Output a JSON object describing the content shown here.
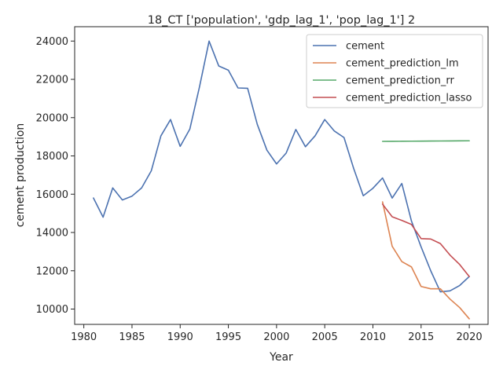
{
  "chart_data": {
    "type": "line",
    "title": "18_CT ['population', 'gdp_lag_1', 'pop_lag_1'] 2",
    "xlabel": "Year",
    "ylabel": "cement production",
    "xlim": [
      1979.05,
      2021.95
    ],
    "ylim": [
      9200,
      24750
    ],
    "xticks": [
      1980,
      1985,
      1990,
      1995,
      2000,
      2005,
      2010,
      2015,
      2020
    ],
    "yticks": [
      10000,
      12000,
      14000,
      16000,
      18000,
      20000,
      22000,
      24000
    ],
    "grid": false,
    "legend_position": "top-right",
    "series": [
      {
        "name": "cement",
        "color": "#4c72b0",
        "x": [
          1981,
          1982,
          1983,
          1984,
          1985,
          1986,
          1987,
          1988,
          1989,
          1990,
          1991,
          1992,
          1993,
          1994,
          1995,
          1996,
          1997,
          1998,
          1999,
          2000,
          2001,
          2002,
          2003,
          2004,
          2005,
          2006,
          2007,
          2008,
          2009,
          2010,
          2011,
          2012,
          2013,
          2014,
          2015,
          2016,
          2017,
          2018,
          2019,
          2020
        ],
        "values": [
          15800,
          14800,
          16330,
          15700,
          15900,
          16330,
          17220,
          19050,
          19900,
          18500,
          19400,
          21600,
          24000,
          22700,
          22480,
          21550,
          21530,
          19650,
          18300,
          17580,
          18150,
          19380,
          18480,
          19050,
          19900,
          19300,
          18960,
          17350,
          15920,
          16310,
          16850,
          15800,
          16560,
          14600,
          13250,
          12000,
          10900,
          10950,
          11230,
          11700
        ]
      },
      {
        "name": "cement_prediction_lm",
        "color": "#dd8452",
        "x": [
          2011,
          2012,
          2013,
          2014,
          2015,
          2016,
          2017,
          2018,
          2019,
          2020
        ],
        "values": [
          15600,
          13280,
          12480,
          12200,
          11180,
          11060,
          11060,
          10520,
          10080,
          9490
        ]
      },
      {
        "name": "cement_prediction_rr",
        "color": "#55a868",
        "x": [
          2011,
          2012,
          2013,
          2014,
          2015,
          2016,
          2017,
          2018,
          2019,
          2020
        ],
        "values": [
          18760,
          18763,
          18766,
          18770,
          18773,
          18777,
          18780,
          18783,
          18786,
          18790
        ]
      },
      {
        "name": "cement_prediction_lasso",
        "color": "#c44e52",
        "x": [
          2011,
          2012,
          2013,
          2014,
          2015,
          2016,
          2017,
          2018,
          2019,
          2020
        ],
        "values": [
          15480,
          14820,
          14630,
          14420,
          13680,
          13660,
          13420,
          12820,
          12330,
          11700
        ]
      }
    ]
  }
}
